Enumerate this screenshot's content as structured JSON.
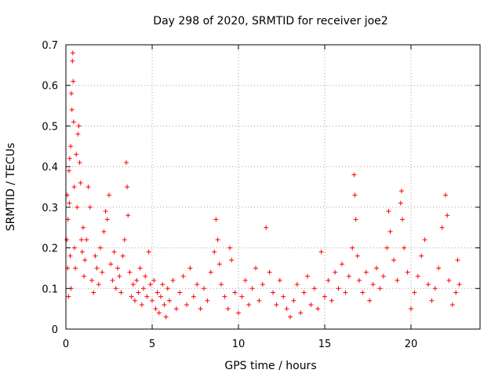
{
  "chart_data": {
    "type": "scatter",
    "title": "Day 298 of 2020, SRMTID for receiver joe2",
    "xlabel": "GPS time / hours",
    "ylabel": "SRMTID / TECUs",
    "xlim": [
      0,
      24
    ],
    "ylim": [
      0,
      0.7
    ],
    "x_ticks": [
      0,
      5,
      10,
      15,
      20
    ],
    "x_tick_labels": [
      "0",
      "5",
      "10",
      "15",
      "20"
    ],
    "y_ticks": [
      0,
      0.1,
      0.2,
      0.3,
      0.4,
      0.5,
      0.6,
      0.7
    ],
    "y_tick_labels": [
      "0",
      "0.1",
      "0.2",
      "0.3",
      "0.4",
      "0.5",
      "0.6",
      "0.7"
    ],
    "grid": true,
    "marker": "plus",
    "color": "#ff0000",
    "series": [
      {
        "name": "SRMTID",
        "points": [
          [
            0.05,
            0.22
          ],
          [
            0.08,
            0.33
          ],
          [
            0.1,
            0.15
          ],
          [
            0.12,
            0.27
          ],
          [
            0.15,
            0.08
          ],
          [
            0.18,
            0.39
          ],
          [
            0.2,
            0.31
          ],
          [
            0.22,
            0.42
          ],
          [
            0.25,
            0.18
          ],
          [
            0.28,
            0.45
          ],
          [
            0.3,
            0.1
          ],
          [
            0.32,
            0.58
          ],
          [
            0.35,
            0.54
          ],
          [
            0.38,
            0.66
          ],
          [
            0.4,
            0.68
          ],
          [
            0.42,
            0.61
          ],
          [
            0.45,
            0.51
          ],
          [
            0.48,
            0.35
          ],
          [
            0.5,
            0.2
          ],
          [
            0.55,
            0.15
          ],
          [
            0.6,
            0.43
          ],
          [
            0.65,
            0.3
          ],
          [
            0.7,
            0.48
          ],
          [
            0.75,
            0.5
          ],
          [
            0.8,
            0.41
          ],
          [
            0.85,
            0.36
          ],
          [
            0.9,
            0.22
          ],
          [
            0.95,
            0.19
          ],
          [
            1.0,
            0.25
          ],
          [
            1.05,
            0.13
          ],
          [
            1.1,
            0.17
          ],
          [
            1.2,
            0.22
          ],
          [
            1.3,
            0.35
          ],
          [
            1.4,
            0.3
          ],
          [
            1.5,
            0.12
          ],
          [
            1.6,
            0.09
          ],
          [
            1.7,
            0.18
          ],
          [
            1.8,
            0.15
          ],
          [
            1.9,
            0.11
          ],
          [
            2.0,
            0.2
          ],
          [
            2.1,
            0.14
          ],
          [
            2.2,
            0.24
          ],
          [
            2.3,
            0.29
          ],
          [
            2.4,
            0.27
          ],
          [
            2.5,
            0.33
          ],
          [
            2.6,
            0.16
          ],
          [
            2.7,
            0.12
          ],
          [
            2.8,
            0.19
          ],
          [
            2.9,
            0.1
          ],
          [
            3.0,
            0.15
          ],
          [
            3.1,
            0.13
          ],
          [
            3.2,
            0.09
          ],
          [
            3.3,
            0.18
          ],
          [
            3.4,
            0.22
          ],
          [
            3.5,
            0.41
          ],
          [
            3.55,
            0.35
          ],
          [
            3.6,
            0.28
          ],
          [
            3.7,
            0.14
          ],
          [
            3.8,
            0.08
          ],
          [
            3.9,
            0.11
          ],
          [
            4.0,
            0.07
          ],
          [
            4.1,
            0.12
          ],
          [
            4.2,
            0.09
          ],
          [
            4.3,
            0.15
          ],
          [
            4.4,
            0.06
          ],
          [
            4.5,
            0.1
          ],
          [
            4.6,
            0.13
          ],
          [
            4.7,
            0.08
          ],
          [
            4.8,
            0.19
          ],
          [
            4.9,
            0.11
          ],
          [
            5.0,
            0.07
          ],
          [
            5.1,
            0.12
          ],
          [
            5.2,
            0.05
          ],
          [
            5.3,
            0.09
          ],
          [
            5.4,
            0.04
          ],
          [
            5.5,
            0.08
          ],
          [
            5.6,
            0.11
          ],
          [
            5.7,
            0.06
          ],
          [
            5.8,
            0.03
          ],
          [
            5.9,
            0.1
          ],
          [
            6.0,
            0.07
          ],
          [
            6.2,
            0.12
          ],
          [
            6.4,
            0.05
          ],
          [
            6.6,
            0.09
          ],
          [
            6.8,
            0.13
          ],
          [
            7.0,
            0.06
          ],
          [
            7.2,
            0.15
          ],
          [
            7.4,
            0.08
          ],
          [
            7.6,
            0.11
          ],
          [
            7.8,
            0.05
          ],
          [
            8.0,
            0.1
          ],
          [
            8.2,
            0.07
          ],
          [
            8.4,
            0.14
          ],
          [
            8.6,
            0.19
          ],
          [
            8.7,
            0.27
          ],
          [
            8.8,
            0.22
          ],
          [
            8.9,
            0.16
          ],
          [
            9.0,
            0.11
          ],
          [
            9.2,
            0.08
          ],
          [
            9.4,
            0.05
          ],
          [
            9.5,
            0.2
          ],
          [
            9.6,
            0.17
          ],
          [
            9.8,
            0.09
          ],
          [
            10.0,
            0.04
          ],
          [
            10.2,
            0.08
          ],
          [
            10.4,
            0.12
          ],
          [
            10.6,
            0.06
          ],
          [
            10.8,
            0.1
          ],
          [
            11.0,
            0.15
          ],
          [
            11.2,
            0.07
          ],
          [
            11.4,
            0.11
          ],
          [
            11.6,
            0.25
          ],
          [
            11.8,
            0.14
          ],
          [
            12.0,
            0.09
          ],
          [
            12.2,
            0.06
          ],
          [
            12.4,
            0.12
          ],
          [
            12.6,
            0.08
          ],
          [
            12.8,
            0.05
          ],
          [
            13.0,
            0.03
          ],
          [
            13.2,
            0.07
          ],
          [
            13.4,
            0.11
          ],
          [
            13.6,
            0.04
          ],
          [
            13.8,
            0.09
          ],
          [
            14.0,
            0.13
          ],
          [
            14.2,
            0.06
          ],
          [
            14.4,
            0.1
          ],
          [
            14.6,
            0.05
          ],
          [
            14.8,
            0.19
          ],
          [
            15.0,
            0.08
          ],
          [
            15.2,
            0.12
          ],
          [
            15.4,
            0.07
          ],
          [
            15.6,
            0.14
          ],
          [
            15.8,
            0.1
          ],
          [
            16.0,
            0.16
          ],
          [
            16.2,
            0.09
          ],
          [
            16.4,
            0.13
          ],
          [
            16.6,
            0.2
          ],
          [
            16.7,
            0.38
          ],
          [
            16.75,
            0.33
          ],
          [
            16.8,
            0.27
          ],
          [
            16.9,
            0.18
          ],
          [
            17.0,
            0.12
          ],
          [
            17.2,
            0.09
          ],
          [
            17.4,
            0.14
          ],
          [
            17.6,
            0.07
          ],
          [
            17.8,
            0.11
          ],
          [
            18.0,
            0.15
          ],
          [
            18.2,
            0.1
          ],
          [
            18.4,
            0.13
          ],
          [
            18.6,
            0.2
          ],
          [
            18.7,
            0.29
          ],
          [
            18.8,
            0.24
          ],
          [
            19.0,
            0.17
          ],
          [
            19.2,
            0.12
          ],
          [
            19.4,
            0.31
          ],
          [
            19.45,
            0.34
          ],
          [
            19.5,
            0.27
          ],
          [
            19.6,
            0.2
          ],
          [
            19.8,
            0.14
          ],
          [
            20.0,
            0.05
          ],
          [
            20.2,
            0.09
          ],
          [
            20.4,
            0.13
          ],
          [
            20.6,
            0.18
          ],
          [
            20.8,
            0.22
          ],
          [
            21.0,
            0.11
          ],
          [
            21.2,
            0.07
          ],
          [
            21.4,
            0.1
          ],
          [
            21.6,
            0.15
          ],
          [
            21.8,
            0.25
          ],
          [
            22.0,
            0.33
          ],
          [
            22.1,
            0.28
          ],
          [
            22.2,
            0.12
          ],
          [
            22.4,
            0.06
          ],
          [
            22.6,
            0.09
          ],
          [
            22.7,
            0.17
          ],
          [
            22.8,
            0.11
          ]
        ]
      }
    ]
  }
}
